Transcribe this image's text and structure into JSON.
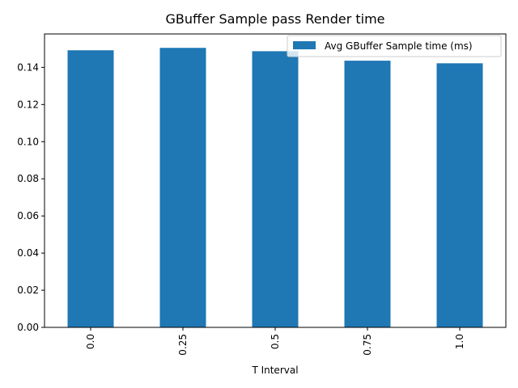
{
  "chart_data": {
    "type": "bar",
    "title": "GBuffer Sample pass Render time",
    "xlabel": "T Interval",
    "ylabel": "",
    "categories": [
      "0.0",
      "0.25",
      "0.5",
      "0.75",
      "1.0"
    ],
    "series": [
      {
        "name": "Avg GBuffer Sample time (ms)",
        "values": [
          0.1492,
          0.1505,
          0.1487,
          0.1436,
          0.1422
        ],
        "color": "#1f77b4"
      }
    ],
    "ylim": [
      0,
      0.158
    ],
    "yticks": [
      "0.00",
      "0.02",
      "0.04",
      "0.06",
      "0.08",
      "0.10",
      "0.12",
      "0.14"
    ],
    "ytick_values": [
      0.0,
      0.02,
      0.04,
      0.06,
      0.08,
      0.1,
      0.12,
      0.14
    ],
    "grid": false,
    "legend_position": "top-right"
  }
}
